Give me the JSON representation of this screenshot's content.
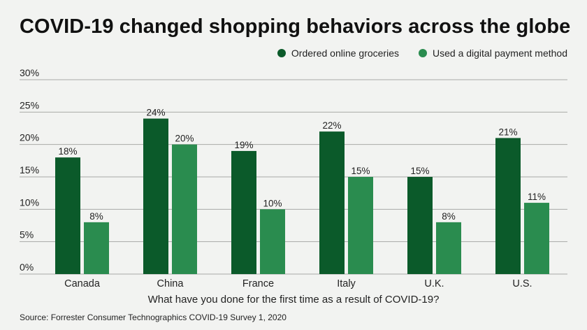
{
  "title": "COVID-19 changed shopping behaviors across the globe",
  "source": "Source: Forrester Consumer Technographics COVID-19 Survey 1, 2020",
  "colors": {
    "background": "#f2f3f1",
    "series1": "#0b5a2a",
    "series2": "#2a8c4f",
    "grid": "#a8aaa6",
    "text": "#222222"
  },
  "chart_data": {
    "type": "bar",
    "title": "COVID-19 changed shopping behaviors across the globe",
    "xlabel": "What have you done for the first time as a result of COVID-19?",
    "ylabel": "",
    "categories": [
      "Canada",
      "China",
      "France",
      "Italy",
      "U.K.",
      "U.S."
    ],
    "series": [
      {
        "name": "Ordered online groceries",
        "values": [
          18,
          24,
          19,
          22,
          15,
          21
        ],
        "labels": [
          "18%",
          "24%",
          "19%",
          "22%",
          "15%",
          "21%"
        ]
      },
      {
        "name": "Used a digital payment method",
        "values": [
          8,
          20,
          10,
          15,
          8,
          11
        ],
        "labels": [
          "8%",
          "20%",
          "10%",
          "15%",
          "8%",
          "11%"
        ]
      }
    ],
    "ylim": [
      0,
      30
    ],
    "yticks": [
      0,
      5,
      10,
      15,
      20,
      25,
      30
    ],
    "ytick_labels": [
      "0%",
      "5%",
      "10%",
      "15%",
      "20%",
      "25%",
      "30%"
    ],
    "grid": true,
    "legend_position": "top-right"
  }
}
